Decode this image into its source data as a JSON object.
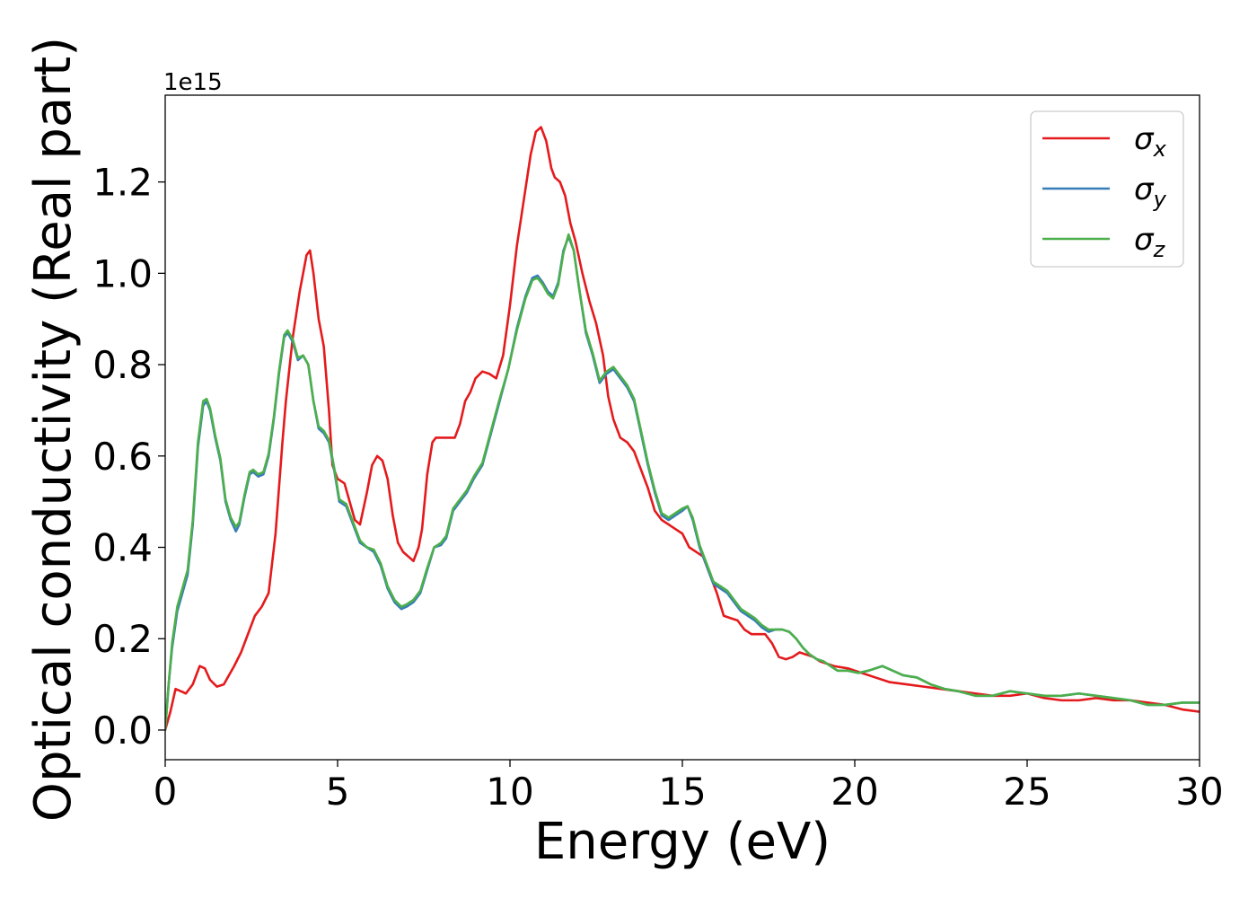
{
  "chart_data": {
    "type": "line",
    "xlabel": "Energy (eV)",
    "ylabel": "Optical conductivity (Real part)",
    "y_offset_text": "1e15",
    "y_scale": 1000000000000000.0,
    "xlim": [
      0,
      30
    ],
    "ylim": [
      -0.065,
      1.39
    ],
    "x_ticks": [
      0,
      5,
      10,
      15,
      20,
      25,
      30
    ],
    "x_tick_labels": [
      "0",
      "5",
      "10",
      "15",
      "20",
      "25",
      "30"
    ],
    "y_ticks": [
      0.0,
      0.2,
      0.4,
      0.6,
      0.8,
      1.0,
      1.2
    ],
    "y_tick_labels": [
      "0.0",
      "0.2",
      "0.4",
      "0.6",
      "0.8",
      "1.0",
      "1.2"
    ],
    "grid": false,
    "legend_position": "top-right",
    "series": [
      {
        "name": "σx",
        "base": "σ",
        "sub": "x",
        "color": "#e41a1c",
        "x": [
          0,
          0.15,
          0.3,
          0.45,
          0.6,
          0.8,
          1.0,
          1.15,
          1.3,
          1.5,
          1.7,
          1.85,
          2.0,
          2.2,
          2.4,
          2.6,
          2.8,
          3.0,
          3.2,
          3.4,
          3.5,
          3.7,
          3.9,
          4.1,
          4.2,
          4.3,
          4.45,
          4.6,
          4.75,
          4.85,
          5.0,
          5.2,
          5.35,
          5.5,
          5.65,
          5.85,
          6.0,
          6.15,
          6.3,
          6.45,
          6.6,
          6.75,
          6.9,
          7.05,
          7.2,
          7.35,
          7.45,
          7.6,
          7.75,
          7.85,
          7.95,
          8.1,
          8.25,
          8.4,
          8.55,
          8.7,
          8.85,
          9.0,
          9.2,
          9.4,
          9.6,
          9.8,
          10.0,
          10.2,
          10.4,
          10.6,
          10.75,
          10.9,
          11.05,
          11.2,
          11.3,
          11.45,
          11.6,
          11.75,
          11.9,
          12.1,
          12.3,
          12.5,
          12.7,
          12.85,
          13.0,
          13.2,
          13.4,
          13.6,
          13.8,
          14.0,
          14.2,
          14.4,
          14.6,
          14.8,
          15.0,
          15.2,
          15.4,
          15.6,
          15.8,
          16.0,
          16.2,
          16.4,
          16.6,
          16.8,
          17.0,
          17.2,
          17.4,
          17.6,
          17.8,
          18.0,
          18.2,
          18.4,
          18.6,
          18.8,
          19.0,
          19.4,
          19.8,
          20.2,
          20.6,
          21.0,
          21.5,
          22.0,
          22.5,
          23.0,
          23.5,
          24.0,
          24.5,
          25.0,
          25.5,
          26.0,
          26.5,
          27.0,
          27.5,
          28.0,
          28.5,
          29.0,
          29.5,
          30.0
        ],
        "y": [
          0,
          0.04,
          0.09,
          0.085,
          0.08,
          0.1,
          0.14,
          0.135,
          0.11,
          0.095,
          0.1,
          0.12,
          0.14,
          0.17,
          0.21,
          0.25,
          0.27,
          0.3,
          0.43,
          0.63,
          0.72,
          0.86,
          0.96,
          1.04,
          1.05,
          1.0,
          0.9,
          0.84,
          0.7,
          0.58,
          0.55,
          0.54,
          0.5,
          0.46,
          0.45,
          0.52,
          0.58,
          0.6,
          0.59,
          0.55,
          0.47,
          0.41,
          0.39,
          0.38,
          0.37,
          0.4,
          0.44,
          0.56,
          0.63,
          0.64,
          0.64,
          0.64,
          0.64,
          0.64,
          0.67,
          0.72,
          0.74,
          0.77,
          0.785,
          0.78,
          0.77,
          0.82,
          0.93,
          1.06,
          1.16,
          1.26,
          1.31,
          1.32,
          1.29,
          1.23,
          1.21,
          1.2,
          1.17,
          1.11,
          1.07,
          1.0,
          0.94,
          0.89,
          0.82,
          0.73,
          0.68,
          0.64,
          0.63,
          0.61,
          0.57,
          0.53,
          0.48,
          0.46,
          0.45,
          0.44,
          0.43,
          0.4,
          0.39,
          0.38,
          0.34,
          0.3,
          0.25,
          0.245,
          0.24,
          0.22,
          0.21,
          0.21,
          0.21,
          0.19,
          0.16,
          0.155,
          0.16,
          0.17,
          0.165,
          0.16,
          0.15,
          0.14,
          0.135,
          0.125,
          0.115,
          0.105,
          0.1,
          0.095,
          0.09,
          0.085,
          0.08,
          0.075,
          0.075,
          0.08,
          0.07,
          0.065,
          0.065,
          0.07,
          0.065,
          0.065,
          0.06,
          0.055,
          0.045,
          0.04
        ]
      },
      {
        "name": "σy",
        "base": "σ",
        "sub": "y",
        "color": "#377eb8",
        "x": [
          0,
          0.1,
          0.2,
          0.35,
          0.5,
          0.65,
          0.8,
          0.95,
          1.1,
          1.2,
          1.3,
          1.45,
          1.6,
          1.75,
          1.9,
          2.05,
          2.15,
          2.3,
          2.45,
          2.55,
          2.7,
          2.85,
          3.0,
          3.15,
          3.3,
          3.45,
          3.55,
          3.7,
          3.85,
          4.0,
          4.15,
          4.3,
          4.45,
          4.6,
          4.75,
          4.9,
          5.05,
          5.25,
          5.45,
          5.65,
          5.85,
          6.05,
          6.25,
          6.45,
          6.65,
          6.85,
          7.0,
          7.2,
          7.4,
          7.6,
          7.8,
          8.0,
          8.15,
          8.35,
          8.55,
          8.75,
          8.95,
          9.2,
          9.45,
          9.7,
          9.95,
          10.2,
          10.45,
          10.65,
          10.8,
          10.95,
          11.1,
          11.25,
          11.4,
          11.55,
          11.7,
          11.85,
          12.0,
          12.2,
          12.4,
          12.6,
          12.8,
          13.0,
          13.2,
          13.4,
          13.6,
          13.8,
          14.0,
          14.2,
          14.4,
          14.6,
          14.8,
          15.0,
          15.15,
          15.3,
          15.5,
          15.7,
          15.9,
          16.1,
          16.3,
          16.5,
          16.7,
          16.9,
          17.1,
          17.3,
          17.5,
          17.7,
          17.9,
          18.1,
          18.3,
          18.5,
          18.7,
          18.9,
          19.1,
          19.3,
          19.5,
          19.8,
          20.1,
          20.4,
          20.8,
          21.1,
          21.4,
          21.8,
          22.2,
          22.6,
          23.0,
          23.5,
          24.0,
          24.5,
          25.0,
          25.5,
          26.0,
          26.5,
          27.0,
          27.5,
          28.0,
          28.5,
          29.0,
          29.5,
          30.0
        ],
        "y": [
          0,
          0.1,
          0.18,
          0.26,
          0.3,
          0.34,
          0.45,
          0.62,
          0.71,
          0.72,
          0.7,
          0.64,
          0.59,
          0.5,
          0.46,
          0.435,
          0.45,
          0.51,
          0.56,
          0.565,
          0.555,
          0.56,
          0.6,
          0.68,
          0.78,
          0.86,
          0.87,
          0.85,
          0.81,
          0.82,
          0.8,
          0.72,
          0.66,
          0.65,
          0.63,
          0.57,
          0.5,
          0.49,
          0.45,
          0.41,
          0.4,
          0.39,
          0.36,
          0.31,
          0.28,
          0.265,
          0.27,
          0.28,
          0.3,
          0.35,
          0.4,
          0.405,
          0.42,
          0.48,
          0.5,
          0.52,
          0.55,
          0.58,
          0.65,
          0.72,
          0.79,
          0.88,
          0.95,
          0.99,
          0.995,
          0.98,
          0.96,
          0.95,
          0.98,
          1.05,
          1.08,
          1.05,
          0.97,
          0.87,
          0.82,
          0.76,
          0.78,
          0.79,
          0.77,
          0.75,
          0.72,
          0.65,
          0.58,
          0.52,
          0.47,
          0.46,
          0.47,
          0.48,
          0.49,
          0.46,
          0.4,
          0.36,
          0.32,
          0.31,
          0.3,
          0.28,
          0.26,
          0.25,
          0.24,
          0.225,
          0.215,
          0.22,
          0.22,
          0.215,
          0.2,
          0.18,
          0.165,
          0.155,
          0.15,
          0.14,
          0.13,
          0.13,
          0.125,
          0.13,
          0.14,
          0.13,
          0.12,
          0.115,
          0.1,
          0.09,
          0.085,
          0.075,
          0.075,
          0.085,
          0.08,
          0.075,
          0.075,
          0.08,
          0.075,
          0.07,
          0.065,
          0.055,
          0.055,
          0.06,
          0.06
        ]
      },
      {
        "name": "σz",
        "base": "σ",
        "sub": "z",
        "color": "#4daf4a",
        "x": [
          0,
          0.1,
          0.2,
          0.35,
          0.5,
          0.65,
          0.8,
          0.95,
          1.1,
          1.2,
          1.3,
          1.45,
          1.6,
          1.75,
          1.9,
          2.05,
          2.15,
          2.3,
          2.45,
          2.55,
          2.7,
          2.85,
          3.0,
          3.15,
          3.3,
          3.45,
          3.55,
          3.7,
          3.85,
          4.0,
          4.15,
          4.3,
          4.45,
          4.6,
          4.75,
          4.9,
          5.05,
          5.25,
          5.45,
          5.65,
          5.85,
          6.05,
          6.25,
          6.45,
          6.65,
          6.85,
          7.0,
          7.2,
          7.4,
          7.6,
          7.8,
          8.0,
          8.15,
          8.35,
          8.55,
          8.75,
          8.95,
          9.2,
          9.45,
          9.7,
          9.95,
          10.2,
          10.45,
          10.65,
          10.8,
          10.95,
          11.1,
          11.25,
          11.4,
          11.55,
          11.7,
          11.85,
          12.0,
          12.2,
          12.4,
          12.6,
          12.8,
          13.0,
          13.2,
          13.4,
          13.6,
          13.8,
          14.0,
          14.2,
          14.4,
          14.6,
          14.8,
          15.0,
          15.15,
          15.3,
          15.5,
          15.7,
          15.9,
          16.1,
          16.3,
          16.5,
          16.7,
          16.9,
          17.1,
          17.3,
          17.5,
          17.7,
          17.9,
          18.1,
          18.3,
          18.5,
          18.7,
          18.9,
          19.1,
          19.3,
          19.5,
          19.8,
          20.1,
          20.4,
          20.8,
          21.1,
          21.4,
          21.8,
          22.2,
          22.6,
          23.0,
          23.5,
          24.0,
          24.5,
          25.0,
          25.5,
          26.0,
          26.5,
          27.0,
          27.5,
          28.0,
          28.5,
          29.0,
          29.5,
          30.0
        ],
        "y": [
          0,
          0.1,
          0.19,
          0.27,
          0.31,
          0.35,
          0.46,
          0.63,
          0.72,
          0.725,
          0.705,
          0.645,
          0.595,
          0.505,
          0.465,
          0.445,
          0.455,
          0.515,
          0.565,
          0.57,
          0.56,
          0.565,
          0.605,
          0.685,
          0.785,
          0.865,
          0.875,
          0.855,
          0.815,
          0.82,
          0.8,
          0.72,
          0.665,
          0.655,
          0.635,
          0.575,
          0.505,
          0.495,
          0.455,
          0.415,
          0.4,
          0.395,
          0.365,
          0.315,
          0.285,
          0.27,
          0.275,
          0.285,
          0.305,
          0.355,
          0.4,
          0.41,
          0.425,
          0.485,
          0.505,
          0.525,
          0.555,
          0.585,
          0.655,
          0.725,
          0.79,
          0.875,
          0.945,
          0.985,
          0.99,
          0.975,
          0.955,
          0.945,
          0.975,
          1.045,
          1.085,
          1.05,
          0.97,
          0.875,
          0.825,
          0.765,
          0.785,
          0.795,
          0.775,
          0.755,
          0.725,
          0.655,
          0.585,
          0.525,
          0.475,
          0.465,
          0.475,
          0.485,
          0.49,
          0.465,
          0.405,
          0.365,
          0.325,
          0.315,
          0.305,
          0.285,
          0.265,
          0.255,
          0.245,
          0.23,
          0.22,
          0.22,
          0.22,
          0.215,
          0.2,
          0.18,
          0.165,
          0.155,
          0.15,
          0.14,
          0.13,
          0.13,
          0.125,
          0.13,
          0.14,
          0.13,
          0.12,
          0.115,
          0.1,
          0.09,
          0.085,
          0.075,
          0.075,
          0.085,
          0.08,
          0.075,
          0.075,
          0.08,
          0.075,
          0.07,
          0.065,
          0.055,
          0.055,
          0.06,
          0.06
        ]
      }
    ]
  }
}
